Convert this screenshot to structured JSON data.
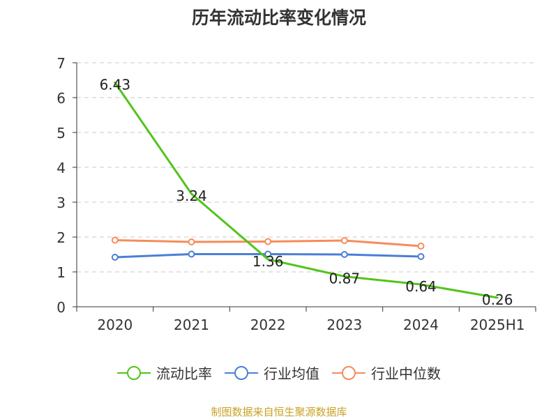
{
  "title": "历年流动比率变化情况",
  "source": "制图数据来自恒生聚源数据库",
  "chart_data": {
    "type": "line",
    "categories": [
      "2020",
      "2021",
      "2022",
      "2023",
      "2024",
      "2025H1"
    ],
    "ylim": [
      0,
      7
    ],
    "yticks": [
      0,
      1,
      2,
      3,
      4,
      5,
      6,
      7
    ],
    "grid": true,
    "legend_position": "bottom",
    "series": [
      {
        "name": "流动比率",
        "color": "#52c41a",
        "values": [
          6.43,
          3.24,
          1.36,
          0.87,
          0.64,
          0.26
        ],
        "labels": [
          "6.43",
          "3.24",
          "1.36",
          "0.87",
          "0.64",
          "0.26"
        ],
        "markers": false
      },
      {
        "name": "行业均值",
        "color": "#4a7fd6",
        "values": [
          1.42,
          1.51,
          1.51,
          1.5,
          1.44,
          null
        ],
        "markers": true
      },
      {
        "name": "行业中位数",
        "color": "#f68c5a",
        "values": [
          1.91,
          1.86,
          1.87,
          1.9,
          1.74,
          null
        ],
        "markers": true
      }
    ]
  }
}
